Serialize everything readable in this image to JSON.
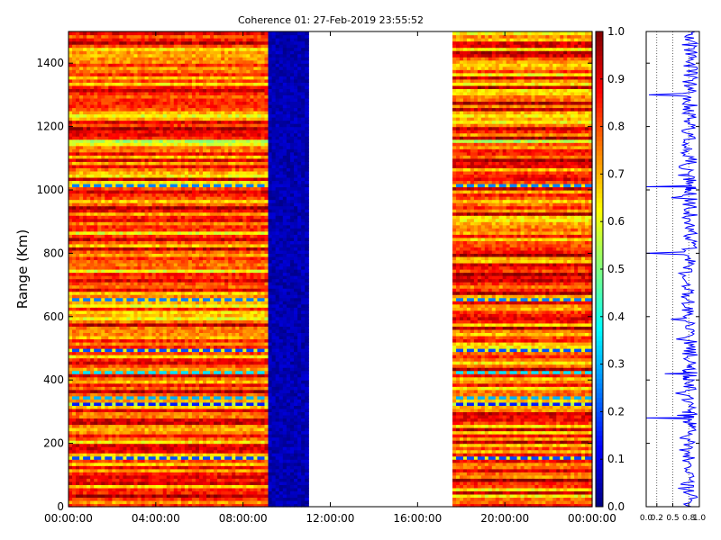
{
  "chart_data": [
    {
      "type": "heatmap",
      "title": "Coherence 01: 27-Feb-2019 23:55:52",
      "ylabel": "Range (Km)",
      "xlabel": "",
      "x_ticks": [
        "00:00:00",
        "04:00:00",
        "08:00:00",
        "12:00:00",
        "16:00:00",
        "20:00:00",
        "00:00:00"
      ],
      "x_range_hours": [
        0,
        24
      ],
      "ylim": [
        0,
        1500
      ],
      "y_ticks": [
        0,
        200,
        400,
        600,
        800,
        1000,
        1200,
        1400
      ],
      "colormap": "jet",
      "colorbar_range": [
        0.0,
        1.0
      ],
      "colorbar_ticks": [
        "0.0",
        "0.1",
        "0.2",
        "0.3",
        "0.4",
        "0.5",
        "0.6",
        "0.7",
        "0.8",
        "0.9",
        "1.0"
      ],
      "segments": [
        {
          "start_hour": 0.0,
          "end_hour": 9.15,
          "typical_value": 0.8,
          "note": "high coherence"
        },
        {
          "start_hour": 9.15,
          "end_hour": 11.0,
          "typical_value": 0.05,
          "note": "low coherence"
        },
        {
          "start_hour": 11.0,
          "end_hour": 17.6,
          "typical_value": null,
          "note": "no data"
        },
        {
          "start_hour": 17.6,
          "end_hour": 24.0,
          "typical_value": 0.82,
          "note": "high coherence"
        }
      ],
      "low_value_rows_km": [
        {
          "range_km": 320,
          "value": 0.15
        },
        {
          "range_km": 340,
          "value": 0.3
        },
        {
          "range_km": 420,
          "value": 0.35
        },
        {
          "range_km": 495,
          "value": 0.2
        },
        {
          "range_km": 655,
          "value": 0.25
        },
        {
          "range_km": 1010,
          "value": 0.25
        },
        {
          "range_km": 1150,
          "value": 0.55
        },
        {
          "range_km": 150,
          "value": 0.2
        }
      ]
    },
    {
      "type": "line",
      "title": "",
      "x_ticks": [
        "0.0",
        "0.2",
        "0.5",
        "0.8",
        "1.0"
      ],
      "xlim": [
        0,
        1
      ],
      "ylim": [
        0,
        1500
      ],
      "profile": {
        "range_km": [
          0,
          50,
          100,
          150,
          200,
          250,
          280,
          300,
          350,
          400,
          420,
          450,
          500,
          550,
          600,
          650,
          700,
          750,
          800,
          850,
          900,
          950,
          1000,
          1010,
          1050,
          1100,
          1150,
          1200,
          1250,
          1300,
          1350,
          1400,
          1450,
          1500
        ],
        "value": [
          0.85,
          0.9,
          0.88,
          0.8,
          0.87,
          0.86,
          0.0,
          0.85,
          0.82,
          0.9,
          0.35,
          0.85,
          0.75,
          0.85,
          0.7,
          0.8,
          0.82,
          0.85,
          0.0,
          0.82,
          0.8,
          0.86,
          0.85,
          0.0,
          0.8,
          0.82,
          0.7,
          0.85,
          0.9,
          0.05,
          0.88,
          0.85,
          0.9,
          0.92
        ]
      }
    }
  ]
}
